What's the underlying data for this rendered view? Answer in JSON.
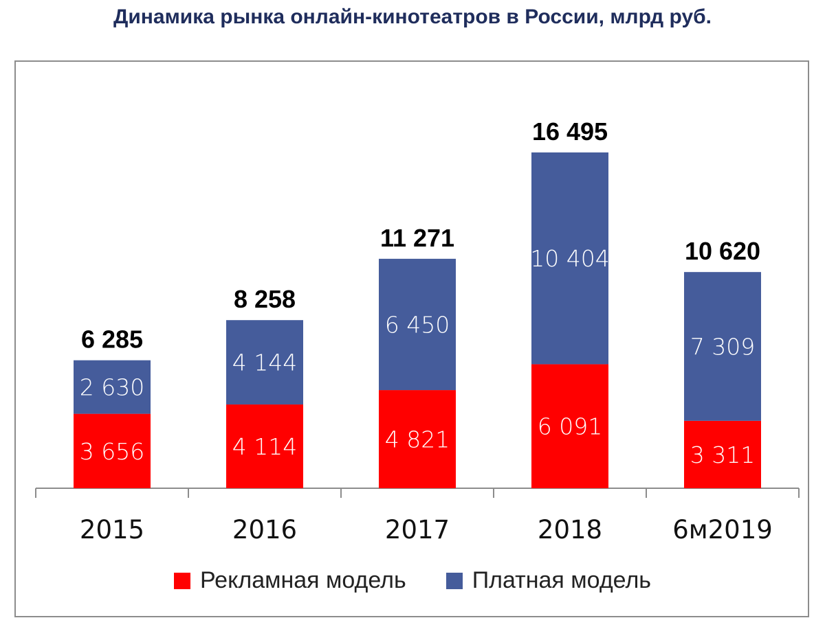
{
  "chart_data": {
    "type": "bar",
    "stacked": true,
    "title": "Динамика рынка онлайн-кинотеатров в России, млрд руб.",
    "categories": [
      "2015",
      "2016",
      "2017",
      "2018",
      "6м2019"
    ],
    "series": [
      {
        "name": "Рекламная модель",
        "color": "#ff0000",
        "values": [
          3656,
          4114,
          4821,
          6091,
          3311
        ],
        "labels": [
          "3 656",
          "4 114",
          "4 821",
          "6 091",
          "3 311"
        ]
      },
      {
        "name": "Платная модель",
        "color": "#455c9b",
        "values": [
          2630,
          4144,
          6450,
          10404,
          7309
        ],
        "labels": [
          "2 630",
          "4 144",
          "6 450",
          "10 404",
          "7 309"
        ]
      }
    ],
    "totals": [
      6285,
      8258,
      11271,
      16495,
      10620
    ],
    "total_labels": [
      "6 285",
      "8 258",
      "11 271",
      "16 495",
      "10 620"
    ],
    "xlabel": "",
    "ylabel": "",
    "ylim": [
      0,
      16495
    ],
    "grid": false,
    "legend_position": "bottom"
  }
}
